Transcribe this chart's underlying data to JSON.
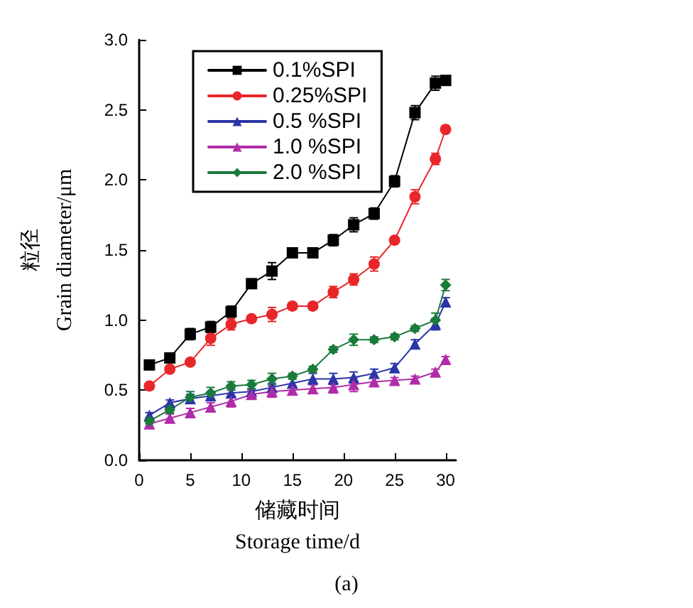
{
  "chart_data": {
    "type": "line",
    "xlabel": "储藏时间\nStorage time/d",
    "ylabel": "粒径\nGrain diameter/μm",
    "annotations": [
      "(a)"
    ],
    "x": [
      1,
      3,
      5,
      7,
      9,
      11,
      13,
      15,
      17,
      19,
      21,
      23,
      25,
      27,
      29,
      30
    ],
    "xlim": [
      0,
      31
    ],
    "xticks": [
      0,
      5,
      10,
      15,
      20,
      25,
      30
    ],
    "ylim": [
      0,
      3
    ],
    "yticks": [
      {
        "value": 0,
        "label": "0.0"
      },
      {
        "value": 0.5,
        "label": "0.5"
      },
      {
        "value": 1,
        "label": "1.0"
      },
      {
        "value": 1.5,
        "label": "1.5"
      },
      {
        "value": 2,
        "label": "2.0"
      },
      {
        "value": 2.5,
        "label": "2.5"
      },
      {
        "value": 3,
        "label": "3.0"
      }
    ],
    "grid": false,
    "legend": "top left",
    "line_style": "solid",
    "series": [
      {
        "name": "0.1%SPI",
        "color": "#000000",
        "marker": "square",
        "values": [
          0.68,
          0.73,
          0.9,
          0.95,
          1.06,
          1.26,
          1.35,
          1.48,
          1.48,
          1.57,
          1.68,
          1.76,
          1.99,
          2.48,
          2.69,
          2.71
        ],
        "errors": [
          0.02,
          0.02,
          0.04,
          0.04,
          0.04,
          0.03,
          0.06,
          0.02,
          0.02,
          0.04,
          0.05,
          0.04,
          0.04,
          0.05,
          0.05,
          0.02
        ]
      },
      {
        "name": "0.25%SPI",
        "color": "#e8262a",
        "marker": "circle",
        "values": [
          0.53,
          0.65,
          0.7,
          0.87,
          0.97,
          1.01,
          1.04,
          1.1,
          1.1,
          1.2,
          1.29,
          1.4,
          1.57,
          1.88,
          2.15,
          2.36
        ],
        "errors": [
          0.02,
          0.02,
          0.02,
          0.05,
          0.04,
          0.02,
          0.05,
          0.02,
          0.02,
          0.04,
          0.04,
          0.05,
          0.02,
          0.05,
          0.04,
          0.02
        ]
      },
      {
        "name": "0.5 %SPI",
        "color": "#2a35a8",
        "marker": "triangle",
        "values": [
          0.32,
          0.41,
          0.44,
          0.46,
          0.48,
          0.49,
          0.52,
          0.55,
          0.58,
          0.58,
          0.59,
          0.62,
          0.66,
          0.83,
          0.97,
          1.13
        ],
        "errors": [
          0.02,
          0.02,
          0.03,
          0.03,
          0.03,
          0.02,
          0.03,
          0.03,
          0.04,
          0.04,
          0.04,
          0.03,
          0.03,
          0.03,
          0.04,
          0.03
        ]
      },
      {
        "name": "1.0 %SPI",
        "color": "#b02ca8",
        "marker": "triangle",
        "values": [
          0.26,
          0.3,
          0.34,
          0.38,
          0.42,
          0.47,
          0.49,
          0.5,
          0.51,
          0.52,
          0.54,
          0.56,
          0.57,
          0.58,
          0.63,
          0.72
        ],
        "errors": [
          0.02,
          0.03,
          0.03,
          0.03,
          0.04,
          0.03,
          0.04,
          0.03,
          0.03,
          0.04,
          0.05,
          0.03,
          0.02,
          0.02,
          0.02,
          0.02
        ]
      },
      {
        "name": "2.0 %SPI",
        "color": "#1a7a3a",
        "marker": "diamond",
        "values": [
          0.28,
          0.36,
          0.45,
          0.48,
          0.53,
          0.54,
          0.58,
          0.6,
          0.65,
          0.79,
          0.86,
          0.86,
          0.88,
          0.94,
          1.0,
          1.25
        ],
        "errors": [
          0.02,
          0.02,
          0.04,
          0.04,
          0.03,
          0.03,
          0.04,
          0.02,
          0.02,
          0.02,
          0.04,
          0.02,
          0.02,
          0.02,
          0.05,
          0.04
        ]
      }
    ]
  }
}
